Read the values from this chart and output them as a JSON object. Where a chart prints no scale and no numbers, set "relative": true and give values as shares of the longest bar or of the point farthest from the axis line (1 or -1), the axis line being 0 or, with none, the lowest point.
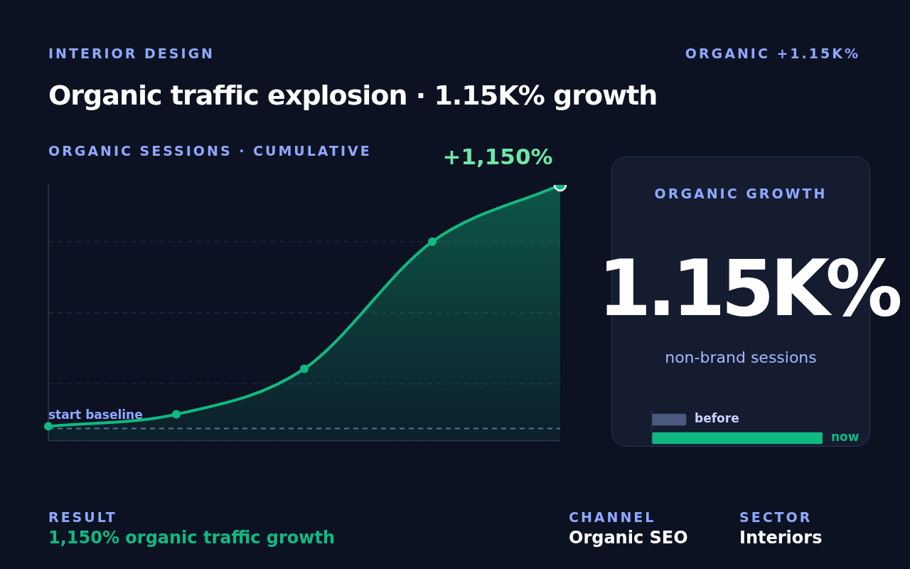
{
  "chart_data": [
    {
      "type": "area",
      "title": "Organic traffic explosion · 1.15K% growth",
      "subtitle": "ORGANIC SESSIONS · CUMULATIVE",
      "annotations": [
        "INTERIOR DESIGN",
        "ORGANIC +1.15K%",
        "+1,150%"
      ],
      "categories": [
        null,
        null,
        null,
        null,
        null
      ],
      "series": [
        {
          "color": "#10b981",
          "values": [
            0.056,
            0.103,
            0.281,
            0.778,
            1
          ]
        }
      ],
      "relative": true,
      "marker": "circle",
      "line_style": "solid",
      "ref_lines": [
        {
          "axis": "y",
          "value": 0.047,
          "label": "start baseline",
          "color": "#5b6b9a",
          "line_style": "dashed"
        },
        {
          "axis": "y",
          "value": 0.222,
          "color": "#2a3450",
          "line_style": "dashed"
        },
        {
          "axis": "y",
          "value": 0.5,
          "color": "#2a3450",
          "line_style": "dashed"
        },
        {
          "axis": "y",
          "value": 0.778,
          "color": "#2a3450",
          "line_style": "dashed"
        }
      ]
    },
    {
      "type": "bar",
      "orientation": "horizontal",
      "relative": true,
      "title": "ORGANIC GROWTH",
      "annotations": [
        "1.15K%",
        "non-brand sessions"
      ],
      "categories": [
        "before",
        "now"
      ],
      "values": [
        0.2,
        1
      ],
      "colors": [
        "#4a5a80",
        "#10b981"
      ]
    },
    {
      "type": "other",
      "annotations": [
        "RESULT",
        "1,150% organic traffic growth",
        "CHANNEL",
        "Organic SEO",
        "SECTOR",
        "Interiors"
      ]
    }
  ]
}
